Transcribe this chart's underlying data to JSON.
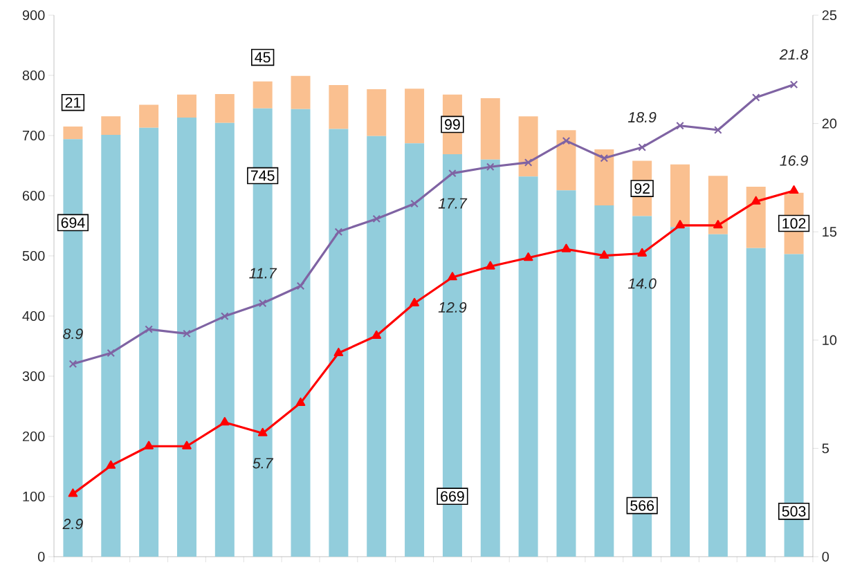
{
  "chart_data": {
    "type": "bar",
    "stacked": true,
    "categories": [
      null,
      null,
      null,
      null,
      null,
      null,
      null,
      null,
      null,
      null,
      null,
      null,
      null,
      null,
      null,
      null,
      null,
      null,
      null,
      null
    ],
    "ylim": [
      0,
      900
    ],
    "yticks": [
      0,
      100,
      200,
      300,
      400,
      500,
      600,
      700,
      800,
      900
    ],
    "y2lim": [
      0,
      25
    ],
    "y2ticks": [
      0,
      5,
      10,
      15,
      20,
      25
    ],
    "grid": false,
    "series": [
      {
        "type": "bar",
        "color": "#92cddc",
        "values": [
          694,
          701,
          713,
          730,
          721,
          745,
          744,
          711,
          699,
          687,
          669,
          660,
          632,
          609,
          584,
          566,
          548,
          536,
          513,
          503
        ],
        "value_labels": [
          "694",
          null,
          null,
          null,
          null,
          "745",
          null,
          null,
          null,
          null,
          "669",
          null,
          null,
          null,
          null,
          "566",
          null,
          null,
          null,
          "503"
        ]
      },
      {
        "type": "bar",
        "color": "#fac090",
        "values": [
          21,
          31,
          38,
          38,
          48,
          45,
          55,
          73,
          78,
          91,
          99,
          102,
          100,
          100,
          93,
          92,
          104,
          97,
          102,
          102
        ],
        "value_labels": [
          "21",
          null,
          null,
          null,
          null,
          "45",
          null,
          null,
          null,
          null,
          "99",
          null,
          null,
          null,
          null,
          "92",
          null,
          null,
          null,
          "102"
        ]
      },
      {
        "type": "line",
        "axis": "y2",
        "color": "#7f63a3",
        "marker": "cross",
        "values": [
          8.9,
          9.4,
          10.5,
          10.3,
          11.1,
          11.7,
          12.5,
          15.0,
          15.6,
          16.3,
          17.7,
          18.0,
          18.2,
          19.2,
          18.4,
          18.9,
          19.9,
          19.7,
          21.2,
          21.8
        ],
        "value_labels": [
          "8.9",
          null,
          null,
          null,
          null,
          "11.7",
          null,
          null,
          null,
          null,
          "17.7",
          null,
          null,
          null,
          null,
          "18.9",
          null,
          null,
          null,
          "21.8"
        ]
      },
      {
        "type": "line",
        "axis": "y2",
        "color": "#ff0000",
        "marker": "triangle",
        "values": [
          2.9,
          4.2,
          5.1,
          5.1,
          6.2,
          5.7,
          7.1,
          9.4,
          10.2,
          11.7,
          12.9,
          13.4,
          13.8,
          14.2,
          13.9,
          14.0,
          15.3,
          15.3,
          16.4,
          16.9
        ],
        "value_labels": [
          "2.9",
          null,
          null,
          null,
          null,
          "5.7",
          null,
          null,
          null,
          null,
          "12.9",
          null,
          null,
          null,
          null,
          "14.0",
          null,
          null,
          null,
          "16.9"
        ]
      }
    ]
  }
}
